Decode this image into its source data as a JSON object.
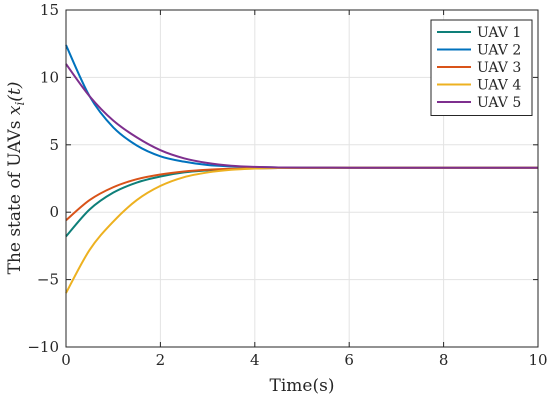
{
  "chart_data": {
    "type": "line",
    "xlabel": "Time(s)",
    "ylabel_main": "The state of UAVs ",
    "ylabel_math": "x",
    "ylabel_sub": "i",
    "ylabel_tail": "(t)",
    "xlim": [
      0,
      10
    ],
    "ylim": [
      -10,
      15
    ],
    "xticks": [
      0,
      2,
      4,
      6,
      8,
      10
    ],
    "yticks": [
      -10,
      -5,
      0,
      5,
      10,
      15
    ],
    "grid": true,
    "legend_position": "top-right",
    "converged_value": 3.3,
    "series": [
      {
        "name": "UAV 1",
        "color": "#0e7f79",
        "x": [
          0,
          0.5,
          1,
          1.5,
          2,
          2.5,
          3,
          3.5,
          4,
          4.5,
          5,
          6,
          7,
          8,
          10
        ],
        "values": [
          -1.8,
          0.2,
          1.45,
          2.2,
          2.65,
          2.95,
          3.1,
          3.2,
          3.25,
          3.28,
          3.29,
          3.3,
          3.3,
          3.3,
          3.3
        ]
      },
      {
        "name": "UAV 2",
        "color": "#0072bd",
        "x": [
          0,
          0.5,
          1,
          1.5,
          2,
          2.5,
          3,
          3.5,
          4,
          4.5,
          5,
          6,
          7,
          8,
          10
        ],
        "values": [
          12.4,
          8.6,
          6.3,
          4.95,
          4.15,
          3.75,
          3.5,
          3.4,
          3.35,
          3.32,
          3.31,
          3.3,
          3.3,
          3.3,
          3.3
        ]
      },
      {
        "name": "UAV 3",
        "color": "#d95319",
        "x": [
          0,
          0.5,
          1,
          1.5,
          2,
          2.5,
          3,
          3.5,
          4,
          4.5,
          5,
          6,
          7,
          8,
          10
        ],
        "values": [
          -0.6,
          0.9,
          1.85,
          2.45,
          2.8,
          3.02,
          3.15,
          3.22,
          3.26,
          3.28,
          3.29,
          3.3,
          3.3,
          3.3,
          3.3
        ]
      },
      {
        "name": "UAV 4",
        "color": "#edb120",
        "x": [
          0,
          0.5,
          1,
          1.5,
          2,
          2.5,
          3,
          3.5,
          4,
          4.5,
          5,
          6,
          7,
          8,
          10
        ],
        "values": [
          -6.0,
          -2.8,
          -0.7,
          0.9,
          1.95,
          2.6,
          2.95,
          3.15,
          3.24,
          3.28,
          3.29,
          3.3,
          3.3,
          3.3,
          3.3
        ]
      },
      {
        "name": "UAV 5",
        "color": "#7e2f8e",
        "x": [
          0,
          0.5,
          1,
          1.5,
          2,
          2.5,
          3,
          3.5,
          4,
          4.5,
          5,
          6,
          7,
          8,
          10
        ],
        "values": [
          11.0,
          8.6,
          6.8,
          5.55,
          4.6,
          4.0,
          3.65,
          3.45,
          3.36,
          3.32,
          3.31,
          3.3,
          3.3,
          3.3,
          3.3
        ]
      }
    ]
  }
}
